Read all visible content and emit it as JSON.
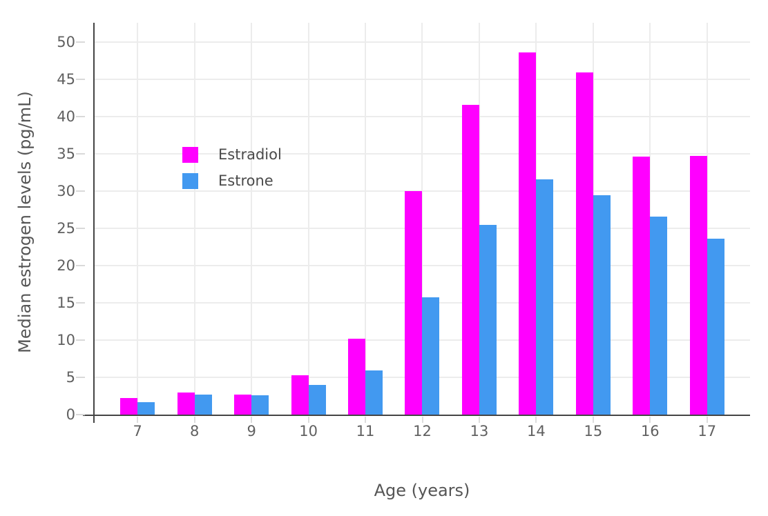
{
  "chart_data": {
    "type": "bar",
    "categories": [
      "7",
      "8",
      "9",
      "10",
      "11",
      "12",
      "13",
      "14",
      "15",
      "16",
      "17"
    ],
    "series": [
      {
        "name": "Estradiol",
        "color": "#FF00FF",
        "values": [
          2.2,
          3.0,
          2.7,
          5.3,
          10.2,
          30.0,
          41.6,
          48.6,
          45.9,
          34.6,
          34.7
        ]
      },
      {
        "name": "Estrone",
        "color": "#4299F0",
        "values": [
          1.7,
          2.7,
          2.6,
          4.0,
          5.9,
          15.7,
          25.5,
          31.6,
          29.4,
          26.6,
          23.6
        ]
      }
    ],
    "title": "",
    "xlabel": "Age (years)",
    "ylabel": "Median estrogen levels (pg/mL)",
    "ylim": [
      0,
      50
    ],
    "yticks": [
      0,
      5,
      10,
      15,
      20,
      25,
      30,
      35,
      40,
      45,
      50
    ],
    "grid": "on",
    "legend_position": "inside-top-left",
    "colors": {
      "estradiol": "#FF00FF",
      "estrone": "#4299F0",
      "axis_line": "#444444",
      "gridline": "#ececec",
      "tick_text": "#606060",
      "title_text": "#555555",
      "background": "#ffffff"
    }
  }
}
